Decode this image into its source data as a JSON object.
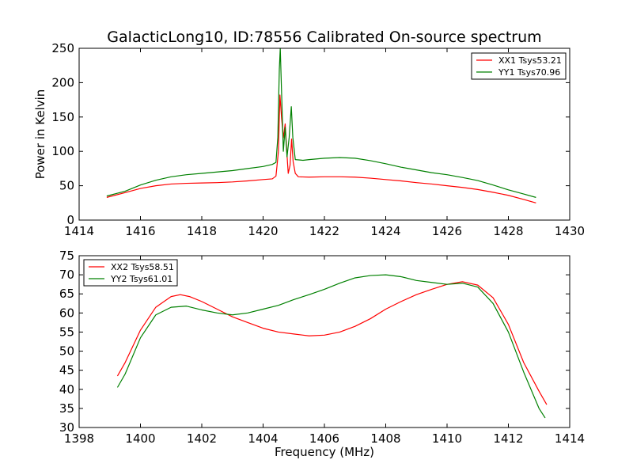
{
  "title": "GalacticLong10, ID:78556 Calibrated On-source spectrum",
  "colors": {
    "xx": "#ff0000",
    "yy": "#008000"
  },
  "chart_data": [
    {
      "type": "line",
      "xlim": [
        1414,
        1430
      ],
      "ylim": [
        0,
        250
      ],
      "xticks": [
        "1414",
        "1416",
        "1418",
        "1420",
        "1422",
        "1424",
        "1426",
        "1428",
        "1430"
      ],
      "yticks": [
        "0",
        "50",
        "100",
        "150",
        "200",
        "250"
      ],
      "xlabel": "",
      "ylabel": "Power in Kelvin",
      "legend_position": "top-right",
      "series": [
        {
          "name": "XX1 Tsys53.21",
          "color": "#ff0000",
          "points": [
            [
              1414.9,
              33
            ],
            [
              1415.5,
              40
            ],
            [
              1416,
              46
            ],
            [
              1416.5,
              50
            ],
            [
              1417,
              52.5
            ],
            [
              1417.5,
              53.5
            ],
            [
              1418,
              54
            ],
            [
              1418.5,
              54.5
            ],
            [
              1419,
              55.5
            ],
            [
              1419.5,
              57
            ],
            [
              1420,
              59
            ],
            [
              1420.3,
              60
            ],
            [
              1420.42,
              64
            ],
            [
              1420.5,
              100
            ],
            [
              1420.55,
              182
            ],
            [
              1420.6,
              150
            ],
            [
              1420.66,
              120
            ],
            [
              1420.72,
              140
            ],
            [
              1420.78,
              95
            ],
            [
              1420.82,
              68
            ],
            [
              1420.88,
              80
            ],
            [
              1420.93,
              118
            ],
            [
              1420.98,
              85
            ],
            [
              1421.05,
              68
            ],
            [
              1421.15,
              63
            ],
            [
              1421.5,
              62.5
            ],
            [
              1422,
              63
            ],
            [
              1422.5,
              63
            ],
            [
              1423,
              62.5
            ],
            [
              1423.5,
              61
            ],
            [
              1424,
              59
            ],
            [
              1424.5,
              57
            ],
            [
              1425,
              54.5
            ],
            [
              1425.5,
              52.5
            ],
            [
              1426,
              50
            ],
            [
              1426.5,
              47.5
            ],
            [
              1427,
              44.5
            ],
            [
              1427.5,
              40.5
            ],
            [
              1428,
              36
            ],
            [
              1428.5,
              30
            ],
            [
              1428.9,
              25
            ]
          ]
        },
        {
          "name": "YY1 Tsys70.96",
          "color": "#008000",
          "points": [
            [
              1414.9,
              35
            ],
            [
              1415.5,
              42
            ],
            [
              1416,
              51
            ],
            [
              1416.5,
              58
            ],
            [
              1417,
              63
            ],
            [
              1417.5,
              66
            ],
            [
              1418,
              68
            ],
            [
              1418.5,
              70
            ],
            [
              1419,
              72
            ],
            [
              1419.5,
              75
            ],
            [
              1420,
              78
            ],
            [
              1420.3,
              81
            ],
            [
              1420.42,
              84
            ],
            [
              1420.48,
              120
            ],
            [
              1420.53,
              220
            ],
            [
              1420.56,
              250
            ],
            [
              1420.6,
              190
            ],
            [
              1420.66,
              100
            ],
            [
              1420.72,
              135
            ],
            [
              1420.78,
              92
            ],
            [
              1420.85,
              120
            ],
            [
              1420.92,
              165
            ],
            [
              1420.97,
              120
            ],
            [
              1421.05,
              88
            ],
            [
              1421.3,
              87
            ],
            [
              1421.5,
              88
            ],
            [
              1422,
              90
            ],
            [
              1422.5,
              91
            ],
            [
              1423,
              90
            ],
            [
              1423.5,
              86.5
            ],
            [
              1424,
              82
            ],
            [
              1424.5,
              77
            ],
            [
              1425,
              73
            ],
            [
              1425.5,
              69
            ],
            [
              1426,
              66
            ],
            [
              1426.5,
              62
            ],
            [
              1427,
              57.5
            ],
            [
              1427.5,
              51
            ],
            [
              1428,
              44
            ],
            [
              1428.5,
              38
            ],
            [
              1428.9,
              33
            ]
          ]
        }
      ]
    },
    {
      "type": "line",
      "xlim": [
        1398,
        1414
      ],
      "ylim": [
        30,
        75
      ],
      "xticks": [
        "1398",
        "1400",
        "1402",
        "1404",
        "1406",
        "1408",
        "1410",
        "1412",
        "1414"
      ],
      "yticks": [
        "30",
        "35",
        "40",
        "45",
        "50",
        "55",
        "60",
        "65",
        "70",
        "75"
      ],
      "xlabel": "Frequency (MHz)",
      "ylabel": "",
      "legend_position": "top-left",
      "series": [
        {
          "name": "XX2 Tsys58.51",
          "color": "#ff0000",
          "points": [
            [
              1399.25,
              43.5
            ],
            [
              1399.5,
              47
            ],
            [
              1400,
              55.5
            ],
            [
              1400.5,
              61.5
            ],
            [
              1401,
              64.3
            ],
            [
              1401.3,
              64.8
            ],
            [
              1401.6,
              64.3
            ],
            [
              1402,
              63
            ],
            [
              1402.5,
              61
            ],
            [
              1403,
              59
            ],
            [
              1403.5,
              57.5
            ],
            [
              1404,
              56
            ],
            [
              1404.5,
              55
            ],
            [
              1405,
              54.5
            ],
            [
              1405.5,
              54
            ],
            [
              1406,
              54.2
            ],
            [
              1406.5,
              55
            ],
            [
              1407,
              56.5
            ],
            [
              1407.5,
              58.5
            ],
            [
              1408,
              61
            ],
            [
              1408.5,
              63
            ],
            [
              1409,
              64.8
            ],
            [
              1409.5,
              66.2
            ],
            [
              1410,
              67.5
            ],
            [
              1410.5,
              68.2
            ],
            [
              1411,
              67.3
            ],
            [
              1411.5,
              64
            ],
            [
              1412,
              57
            ],
            [
              1412.5,
              47
            ],
            [
              1413,
              39.5
            ],
            [
              1413.25,
              36
            ]
          ]
        },
        {
          "name": "YY2 Tsys61.01",
          "color": "#008000",
          "points": [
            [
              1399.25,
              40.5
            ],
            [
              1399.5,
              44
            ],
            [
              1400,
              53.5
            ],
            [
              1400.5,
              59.5
            ],
            [
              1401,
              61.5
            ],
            [
              1401.5,
              61.8
            ],
            [
              1402,
              60.8
            ],
            [
              1402.5,
              60
            ],
            [
              1403,
              59.5
            ],
            [
              1403.5,
              60
            ],
            [
              1404,
              61
            ],
            [
              1404.5,
              62
            ],
            [
              1405,
              63.5
            ],
            [
              1405.5,
              64.8
            ],
            [
              1406,
              66.2
            ],
            [
              1406.5,
              67.8
            ],
            [
              1407,
              69.2
            ],
            [
              1407.5,
              69.8
            ],
            [
              1408,
              70
            ],
            [
              1408.5,
              69.5
            ],
            [
              1409,
              68.5
            ],
            [
              1409.5,
              68
            ],
            [
              1410,
              67.5
            ],
            [
              1410.5,
              67.8
            ],
            [
              1411,
              66.8
            ],
            [
              1411.5,
              62.5
            ],
            [
              1412,
              55
            ],
            [
              1412.5,
              44.5
            ],
            [
              1413,
              35
            ],
            [
              1413.2,
              32.5
            ]
          ]
        }
      ]
    }
  ]
}
